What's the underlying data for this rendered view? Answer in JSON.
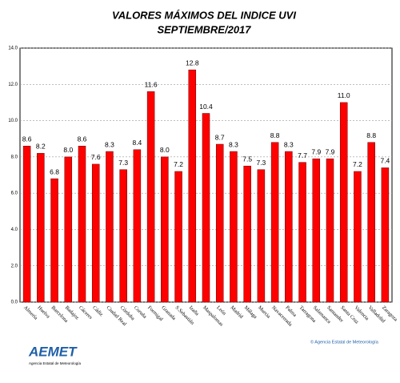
{
  "chart_data": {
    "type": "bar",
    "title": "VALORES MÁXIMOS DEL INDICE UVI",
    "subtitle": "SEPTIEMBRE/2017",
    "categories": [
      "Almería",
      "Huelva",
      "Barcelona",
      "Badajoz",
      "Cáceres",
      "Cádiz",
      "Ciudad Real",
      "Córdoba",
      "Coruña",
      "Formigal",
      "Granada",
      "S.Sebastián",
      "Izaña",
      "Maspalomas",
      "León",
      "Madrid",
      "Málaga",
      "Murcia",
      "Navacerrada",
      "Palma",
      "Tarragona",
      "Salamanca",
      "Santander",
      "Santa Cruz",
      "Valencia",
      "Valladolid",
      "Zaragoza"
    ],
    "values": [
      8.6,
      8.2,
      6.8,
      8.0,
      8.6,
      7.6,
      8.3,
      7.3,
      8.4,
      11.6,
      8.0,
      7.2,
      12.8,
      10.4,
      8.7,
      8.3,
      7.5,
      7.3,
      8.8,
      8.3,
      7.7,
      7.9,
      7.9,
      11.0,
      7.2,
      8.8,
      7.4
    ],
    "value_labels": [
      "8.6",
      "8.2",
      "6.8",
      "8.0",
      "8.6",
      "7.6",
      "8.3",
      "7.3",
      "8.4",
      "11.6",
      "8.0",
      "7.2",
      "12.8",
      "10.4",
      "8.7",
      "8.3",
      "7.5",
      "7.3",
      "8.8",
      "8.3",
      "7.7",
      "7.9",
      "7.9",
      "11.0",
      "7.2",
      "8.8",
      "7.4"
    ],
    "color": "#ff0000",
    "ylim": [
      0,
      14
    ],
    "yticks": [
      {
        "value": 0,
        "label": "0.0"
      },
      {
        "value": 2,
        "label": "2.0"
      },
      {
        "value": 4,
        "label": "4.0"
      },
      {
        "value": 6,
        "label": "6.0"
      },
      {
        "value": 8,
        "label": "8.0"
      },
      {
        "value": 10,
        "label": "10.0"
      },
      {
        "value": 12,
        "label": "12.0"
      },
      {
        "value": 14,
        "label": "14.0"
      }
    ],
    "grid": true
  },
  "footer": {
    "logo": "AEMET",
    "logo_caption": "Agencia Estatal de Meteorología",
    "credit": "© Agencia Estatal de Meteorología"
  }
}
